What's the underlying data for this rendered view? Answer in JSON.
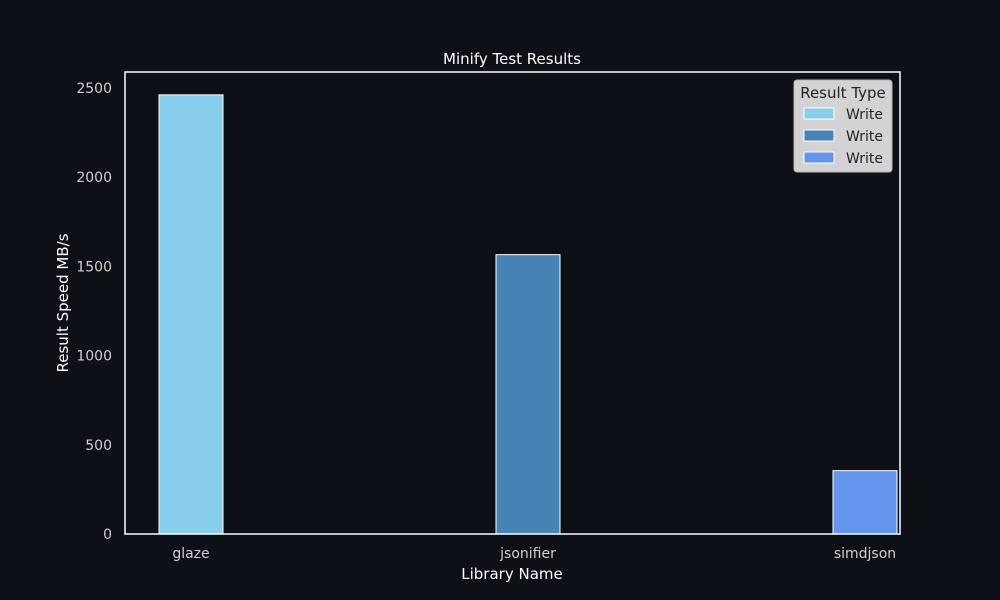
{
  "chart_data": {
    "type": "bar",
    "title": "Minify Test Results",
    "xlabel": "Library Name",
    "ylabel": "Result Speed MB/s",
    "categories": [
      "glaze",
      "jsonifier",
      "simdjson"
    ],
    "ylim": [
      0,
      2590
    ],
    "yticks": [
      0,
      500,
      1000,
      1500,
      2000,
      2500
    ],
    "grid": false,
    "series": [
      {
        "name": "Write",
        "color": "#87ceeb",
        "values": [
          2462,
          null,
          null
        ]
      },
      {
        "name": "Write",
        "color": "#4682b4",
        "values": [
          null,
          1566,
          null
        ]
      },
      {
        "name": "Write",
        "color": "#6495ed",
        "values": [
          null,
          null,
          355
        ]
      }
    ],
    "legend": {
      "title": "Result Type",
      "placement": "top-right"
    }
  },
  "colors": {
    "background": "#0d1017",
    "axes": "#ffffff",
    "tick_text": "#d0d0d0",
    "legend_bg": "#d3d3d3"
  }
}
